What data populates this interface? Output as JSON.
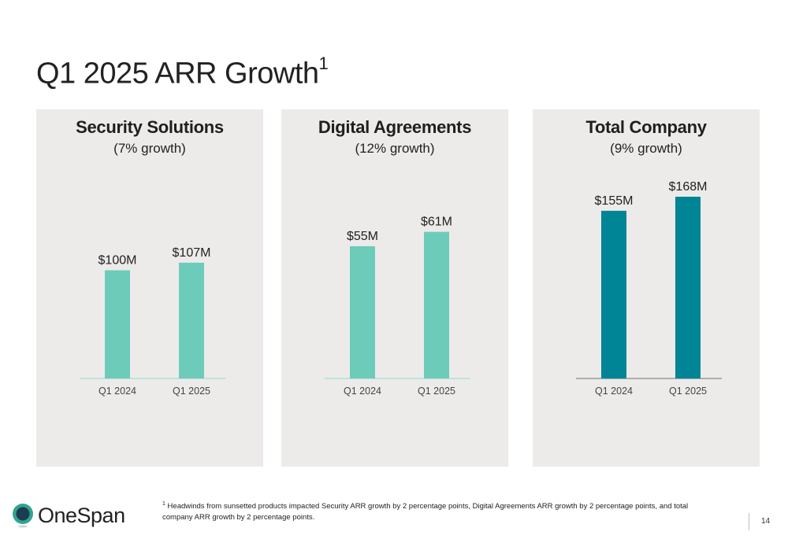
{
  "slide": {
    "title": "Q1 2025 ARR Growth",
    "title_superscript": "1",
    "footnote_marker": "1",
    "footnote": "Headwinds from sunsetted products impacted Security ARR growth by 2 percentage points, Digital Agreements ARR growth by 2 percentage points, and total company ARR growth by 2 percentage points.",
    "logo_text": "OneSpan",
    "page_number": "14"
  },
  "colors": {
    "light_bar": "#6dcbb9",
    "dark_bar": "#008596",
    "panel_bg": "#ecebea",
    "logo_accent": "#2fa58c"
  },
  "chart_data": [
    {
      "type": "bar",
      "title": "Security Solutions",
      "subtitle": "(7% growth)",
      "categories": [
        "Q1 2024",
        "Q1 2025"
      ],
      "values": [
        100,
        107
      ],
      "data_labels": [
        "$100M",
        "$107M"
      ],
      "unit": "$M",
      "bar_color": "#6dcbb9",
      "axis_color": "#a7dccf",
      "ylim": [
        0,
        200
      ]
    },
    {
      "type": "bar",
      "title": "Digital Agreements",
      "subtitle": "(12% growth)",
      "categories": [
        "Q1 2024",
        "Q1 2025"
      ],
      "values": [
        55,
        61
      ],
      "data_labels": [
        "$55M",
        "$61M"
      ],
      "unit": "$M",
      "bar_color": "#6dcbb9",
      "axis_color": "#a7dccf",
      "ylim": [
        0,
        90
      ]
    },
    {
      "type": "bar",
      "title": "Total Company",
      "subtitle": "(9% growth)",
      "categories": [
        "Q1 2024",
        "Q1 2025"
      ],
      "values": [
        155,
        168
      ],
      "data_labels": [
        "$155M",
        "$168M"
      ],
      "unit": "$M",
      "bar_color": "#008596",
      "axis_color": "#8a8a8a",
      "ylim": [
        0,
        200
      ]
    }
  ]
}
